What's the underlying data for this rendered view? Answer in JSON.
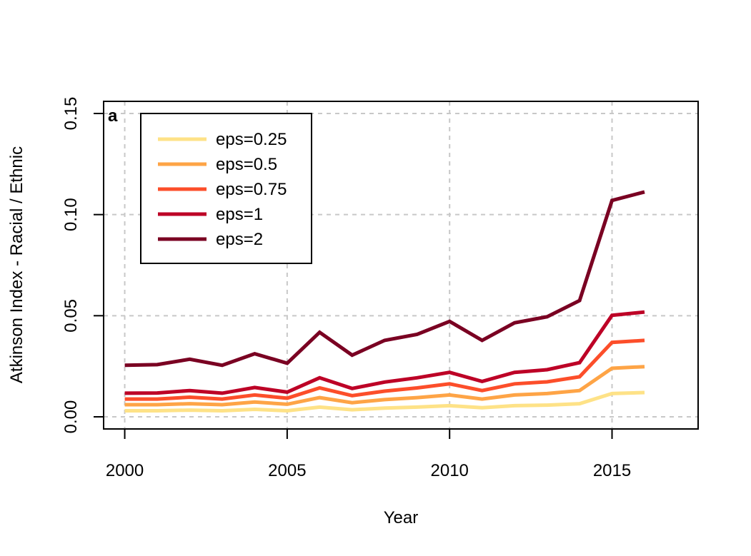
{
  "chart_data": {
    "type": "line",
    "panel_label": "a",
    "xlabel": "Year",
    "ylabel": "Atkinson Index - Racial / Ethnic",
    "xlim": [
      1999.35,
      2017.65
    ],
    "ylim": [
      -0.006,
      0.156
    ],
    "x_ticks": [
      2000,
      2005,
      2010,
      2015
    ],
    "y_ticks": [
      0.0,
      0.05,
      0.1,
      0.15
    ],
    "y_tick_labels": [
      "0.00",
      "0.05",
      "0.10",
      "0.15"
    ],
    "grid": true,
    "legend_position": "top-left",
    "x": [
      2000,
      2001,
      2002,
      2003,
      2004,
      2005,
      2006,
      2007,
      2008,
      2009,
      2010,
      2011,
      2012,
      2013,
      2014,
      2015,
      2016
    ],
    "series": [
      {
        "name": "eps=0.25",
        "color": "#FEE287",
        "values": [
          0.003,
          0.003,
          0.0033,
          0.003,
          0.0037,
          0.003,
          0.0048,
          0.0035,
          0.0043,
          0.0048,
          0.0055,
          0.0045,
          0.0055,
          0.0058,
          0.0065,
          0.0115,
          0.012
        ]
      },
      {
        "name": "eps=0.5",
        "color": "#FEA446",
        "values": [
          0.006,
          0.006,
          0.0065,
          0.006,
          0.0073,
          0.0062,
          0.0095,
          0.007,
          0.0085,
          0.0095,
          0.0108,
          0.0088,
          0.0108,
          0.0115,
          0.013,
          0.024,
          0.0248
        ]
      },
      {
        "name": "eps=0.75",
        "color": "#FC4E2A",
        "values": [
          0.0088,
          0.0088,
          0.0097,
          0.0088,
          0.0108,
          0.0092,
          0.0143,
          0.0105,
          0.0127,
          0.0143,
          0.0163,
          0.013,
          0.0163,
          0.0173,
          0.0198,
          0.0368,
          0.0378
        ]
      },
      {
        "name": "eps=1",
        "color": "#BD0026",
        "values": [
          0.0117,
          0.0118,
          0.013,
          0.0117,
          0.0145,
          0.0122,
          0.0193,
          0.014,
          0.0172,
          0.0193,
          0.022,
          0.0175,
          0.022,
          0.0233,
          0.0268,
          0.0502,
          0.0518
        ]
      },
      {
        "name": "eps=2",
        "color": "#7A0022",
        "values": [
          0.0255,
          0.0258,
          0.0285,
          0.0255,
          0.0312,
          0.0265,
          0.0418,
          0.0305,
          0.0378,
          0.0408,
          0.0472,
          0.0378,
          0.0465,
          0.0495,
          0.0575,
          0.107,
          0.1112
        ]
      }
    ]
  }
}
